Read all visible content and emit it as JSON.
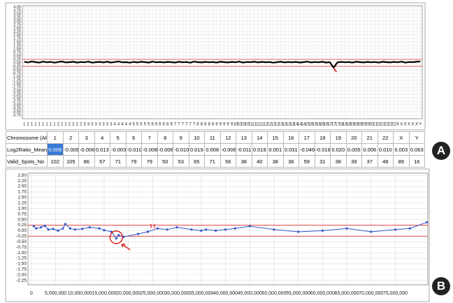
{
  "chart_data": [
    {
      "type": "line",
      "color": "#000000",
      "threshold_color": "#e03030",
      "thresholds": [
        0.25,
        -0.25
      ],
      "grid": true,
      "ylim": [
        -4,
        4.1
      ],
      "yticks": [
        {
          "value": 4,
          "label": "4.00"
        },
        {
          "value": 3.75,
          "label": "3.75"
        },
        {
          "value": 3.5,
          "label": "3.50"
        },
        {
          "value": 3.25,
          "label": "3.25"
        },
        {
          "value": 3,
          "label": "3.00"
        },
        {
          "value": 2.75,
          "label": "2.75"
        },
        {
          "value": 2.5,
          "label": "2.50"
        },
        {
          "value": 2.25,
          "label": "2.25"
        },
        {
          "value": 2,
          "label": "2.00"
        },
        {
          "value": 1.75,
          "label": "1.75"
        },
        {
          "value": 1.5,
          "label": "1.50"
        },
        {
          "value": 1.25,
          "label": "1.25"
        },
        {
          "value": 1,
          "label": "1.00"
        },
        {
          "value": 0.75,
          "label": "0.75"
        },
        {
          "value": 0.5,
          "label": "0.50"
        },
        {
          "value": 0.25,
          "label": "0.25"
        },
        {
          "value": 0,
          "label": "0.00"
        },
        {
          "value": -0.25,
          "label": "-0.25"
        },
        {
          "value": -0.5,
          "label": "-0.50"
        },
        {
          "value": -0.75,
          "label": "-0.75"
        },
        {
          "value": -1,
          "label": "-1.00"
        },
        {
          "value": -1.25,
          "label": "-1.25"
        },
        {
          "value": -1.5,
          "label": "-1.50"
        },
        {
          "value": -1.75,
          "label": "-1.75"
        },
        {
          "value": -2,
          "label": "-2.00"
        },
        {
          "value": -2.25,
          "label": "-2.25"
        },
        {
          "value": -2.5,
          "label": "-2.50"
        },
        {
          "value": -2.75,
          "label": "-2.75"
        },
        {
          "value": -3,
          "label": "-3.00"
        },
        {
          "value": -3.25,
          "label": "-3.25"
        },
        {
          "value": -3.5,
          "label": "-3.50"
        },
        {
          "value": -3.75,
          "label": "-3.75"
        }
      ],
      "categories": [
        "1",
        "1",
        "1",
        "1",
        "1",
        "1",
        "1",
        "1",
        "1",
        "2",
        "2",
        "2",
        "2",
        "2",
        "2",
        "2",
        "3",
        "3",
        "3",
        "3",
        "3",
        "3",
        "3",
        "3",
        "4",
        "4",
        "4",
        "4",
        "4",
        "5",
        "5",
        "5",
        "5",
        "5",
        "6",
        "6",
        "6",
        "6",
        "6",
        "6",
        "7",
        "7",
        "7",
        "7",
        "7",
        "7",
        "8",
        "8",
        "8",
        "8",
        "8",
        "9",
        "9",
        "9",
        "9",
        "9",
        "10",
        "10",
        "10",
        "10",
        "11",
        "11",
        "11",
        "11",
        "12",
        "12",
        "12",
        "12",
        "13",
        "13",
        "13",
        "13",
        "14",
        "14",
        "14",
        "15",
        "15",
        "15",
        "16",
        "16",
        "16",
        "17",
        "17",
        "17",
        "18",
        "18",
        "18",
        "19",
        "19",
        "19",
        "20",
        "20",
        "20",
        "21",
        "21",
        "21",
        "22",
        "22",
        "22",
        "X",
        "X",
        "X",
        "X",
        "X",
        "X",
        "Y"
      ],
      "values": [
        0.08,
        0.03,
        0.1,
        0.05,
        0.02,
        0.09,
        0.04,
        0.07,
        0.01,
        0.06,
        0.1,
        0.03,
        0.05,
        0.08,
        0.02,
        0.06,
        0.04,
        0.09,
        0.01,
        0.05,
        0.07,
        0.03,
        0.08,
        0.02,
        0.06,
        0.1,
        0.04,
        0.05,
        0.01,
        0.07,
        0.03,
        0.08,
        0.05,
        0.02,
        0.09,
        0.04,
        0.06,
        0.03,
        0.07,
        0.05,
        0.02,
        0.08,
        0.04,
        0.06,
        0.01,
        0.09,
        0.05,
        0.03,
        0.07,
        0.04,
        0.06,
        0.02,
        0.08,
        0.05,
        0.03,
        0.07,
        0.04,
        0.09,
        0.02,
        0.06,
        0.05,
        0.08,
        0.03,
        0.07,
        0.04,
        0.06,
        0.01,
        0.05,
        0.08,
        0.03,
        0.06,
        0.04,
        0.07,
        0.02,
        0.05,
        0.09,
        0.03,
        0.06,
        0.04,
        0.08,
        0.02,
        0.05,
        -0.35,
        0.03,
        0.07,
        0.04,
        0.06,
        0.02,
        0.08,
        0.05,
        0.03,
        0.07,
        0.04,
        0.06,
        0.02,
        0.08,
        0.05,
        0.03,
        0.07,
        0.04,
        0.09,
        0.02,
        0.06,
        0.05,
        0.08,
        0.1
      ]
    },
    {
      "type": "line",
      "color": "#2f56c8",
      "threshold_color": "#e03030",
      "thresholds": [
        0.25,
        -0.25
      ],
      "grid": true,
      "xlim": [
        -700000,
        81700000
      ],
      "ylim": [
        -2.45,
        2.6
      ],
      "yticks": [
        {
          "value": 2.5,
          "label": "2.50"
        },
        {
          "value": 2.25,
          "label": "2.25"
        },
        {
          "value": 2,
          "label": "2.00"
        },
        {
          "value": 1.75,
          "label": "1.75"
        },
        {
          "value": 1.5,
          "label": "1.50"
        },
        {
          "value": 1.25,
          "label": "1.25"
        },
        {
          "value": 1,
          "label": "1.00"
        },
        {
          "value": 0.75,
          "label": "0.75"
        },
        {
          "value": 0.5,
          "label": "0.50"
        },
        {
          "value": 0.25,
          "label": "0.25"
        },
        {
          "value": 0,
          "label": "0.00"
        },
        {
          "value": -0.25,
          "label": "-0.25"
        },
        {
          "value": -0.5,
          "label": "-0.50"
        },
        {
          "value": -0.75,
          "label": "-0.75"
        },
        {
          "value": -1,
          "label": "-1.00"
        },
        {
          "value": -1.25,
          "label": "-1.25"
        },
        {
          "value": -1.5,
          "label": "-1.50"
        },
        {
          "value": -1.75,
          "label": "-1.75"
        },
        {
          "value": -2,
          "label": "-2.00"
        },
        {
          "value": -2.25,
          "label": "-2.25"
        }
      ],
      "xticks": [
        0,
        {
          "value": 5000000,
          "label": "5,000,000"
        },
        {
          "value": 10000000,
          "label": "10,000,000"
        },
        {
          "value": 15000000,
          "label": "15,000,000"
        },
        {
          "value": 20000000,
          "label": "20,000,000"
        },
        {
          "value": 25000000,
          "label": "25,000,000"
        },
        {
          "value": 30000000,
          "label": "30,000,000"
        },
        {
          "value": 35000000,
          "label": "35,000,000"
        },
        {
          "value": 40000000,
          "label": "40,000,000"
        },
        {
          "value": 45000000,
          "label": "45,000,000"
        },
        {
          "value": 50000000,
          "label": "50,000,000"
        },
        {
          "value": 55000000,
          "label": "55,000,000"
        },
        {
          "value": 60000000,
          "label": "60,000,000"
        },
        {
          "value": 65000000,
          "label": "65,000,000"
        },
        {
          "value": 70000000,
          "label": "70,000,000"
        },
        {
          "value": 75000000,
          "label": "75,000,000"
        }
      ],
      "x": [
        500000,
        1000000,
        2000000,
        2800000,
        3500000,
        4500000,
        5500000,
        6500000,
        7000000,
        8000000,
        9000000,
        10500000,
        12000000,
        14000000,
        15000000,
        16500000,
        17500000,
        18000000,
        19000000,
        22000000,
        24000000,
        26000000,
        28000000,
        30000000,
        33000000,
        35000000,
        36000000,
        38000000,
        40000000,
        42000000,
        45000000,
        50000000,
        55000000,
        60000000,
        65000000,
        70000000,
        75000000,
        78000000,
        81500000
      ],
      "values": [
        0.2,
        0.1,
        0.15,
        0.22,
        0.05,
        0.08,
        0.0,
        0.1,
        0.3,
        0.1,
        0.05,
        0.08,
        0.15,
        0.1,
        0.02,
        -0.05,
        -0.35,
        -0.2,
        -0.28,
        -0.15,
        -0.05,
        0.1,
        0.05,
        0.15,
        0.05,
        0.0,
        0.05,
        0.0,
        0.05,
        0.1,
        0.2,
        0.05,
        -0.05,
        0.0,
        0.1,
        -0.05,
        0.05,
        0.1,
        0.38
      ]
    }
  ],
  "table": {
    "header": [
      "Chromosome (All)",
      "1",
      "2",
      "3",
      "4",
      "5",
      "6",
      "7",
      "8",
      "9",
      "10",
      "11",
      "12",
      "13",
      "14",
      "15",
      "16",
      "17",
      "18",
      "19",
      "20",
      "21",
      "22",
      "X",
      "Y"
    ],
    "rows": [
      [
        "Log2Ratio_Mean",
        "0.008",
        "-0.009",
        "-0.006",
        "0.013",
        "-0.003",
        "-0.010",
        "-0.008",
        "-0.006",
        "-0.010",
        "0.019",
        "0.008",
        "-0.006",
        "-0.011",
        "0.019",
        "0.001",
        "0.031",
        "-0.046",
        "-0.018",
        "0.020",
        "0.005",
        "0.006",
        "0.010",
        "0.003",
        "0.063"
      ],
      [
        "Valid_Spots_No",
        "102",
        "105",
        "86",
        "57",
        "71",
        "79",
        "79",
        "50",
        "53",
        "65",
        "71",
        "56",
        "38",
        "40",
        "38",
        "36",
        "59",
        "31",
        "38",
        "39",
        "37",
        "48",
        "89",
        "16"
      ]
    ]
  },
  "panel_labels": [
    "A",
    "B"
  ]
}
